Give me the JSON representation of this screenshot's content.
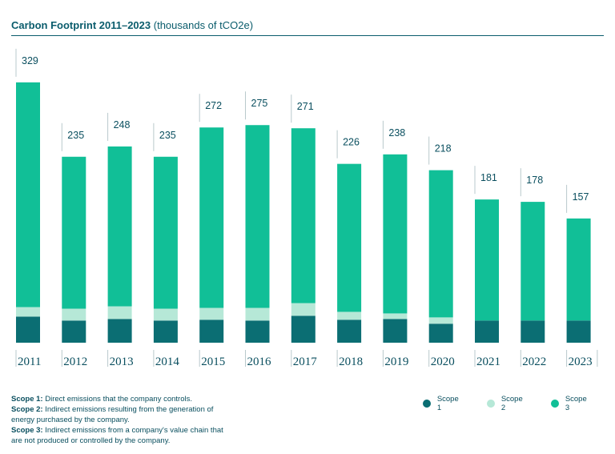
{
  "header": {
    "title_bold": "Carbon Footprint 2011–2023",
    "title_units": "(thousands of tCO2e)"
  },
  "colors": {
    "scope1": "#0b6e73",
    "scope2": "#b6e8d7",
    "scope3": "#11bf97",
    "text": "#0a4f5f"
  },
  "chart_data": {
    "type": "bar",
    "stacked": true,
    "title": "Carbon Footprint 2011–2023 (thousands of tCO2e)",
    "categories": [
      "2011",
      "2012",
      "2013",
      "2014",
      "2015",
      "2016",
      "2017",
      "2018",
      "2019",
      "2020",
      "2021",
      "2022",
      "2023"
    ],
    "totals": [
      329,
      235,
      248,
      235,
      272,
      275,
      271,
      226,
      238,
      218,
      181,
      178,
      157
    ],
    "total_labels": [
      "329",
      "235",
      "248",
      "235",
      "272",
      "275",
      "271",
      "226",
      "238",
      "218",
      "181",
      "178",
      "157"
    ],
    "series": [
      {
        "name": "Scope 1",
        "values": [
          33,
          28,
          30,
          28,
          29,
          28,
          34,
          29,
          30,
          24,
          28,
          28,
          28
        ]
      },
      {
        "name": "Scope 2",
        "values": [
          12,
          15,
          16,
          15,
          15,
          16,
          16,
          10,
          7,
          8,
          0,
          0,
          0
        ]
      },
      {
        "name": "Scope 3",
        "values": [
          284,
          192,
          202,
          192,
          228,
          231,
          221,
          187,
          201,
          186,
          153,
          150,
          129
        ]
      }
    ],
    "xlabel": "",
    "ylabel": "thousands of tCO2e",
    "ylim": [
      0,
      340
    ]
  },
  "legend": {
    "items": [
      {
        "label": "Scope 1",
        "color": "#0b6e73"
      },
      {
        "label": "Scope 2",
        "color": "#b6e8d7"
      },
      {
        "label": "Scope 3",
        "color": "#11bf97"
      }
    ]
  },
  "notes": {
    "scope1_term": "Scope 1:",
    "scope1_text": "Direct emissions that the company controls.",
    "scope2_term": "Scope 2:",
    "scope2_text": "Indirect emissions resulting from the generation of energy purchased by the company.",
    "scope3_term": "Scope 3:",
    "scope3_text": "Indirect emissions from a company's value chain that are not produced or controlled by the company."
  }
}
